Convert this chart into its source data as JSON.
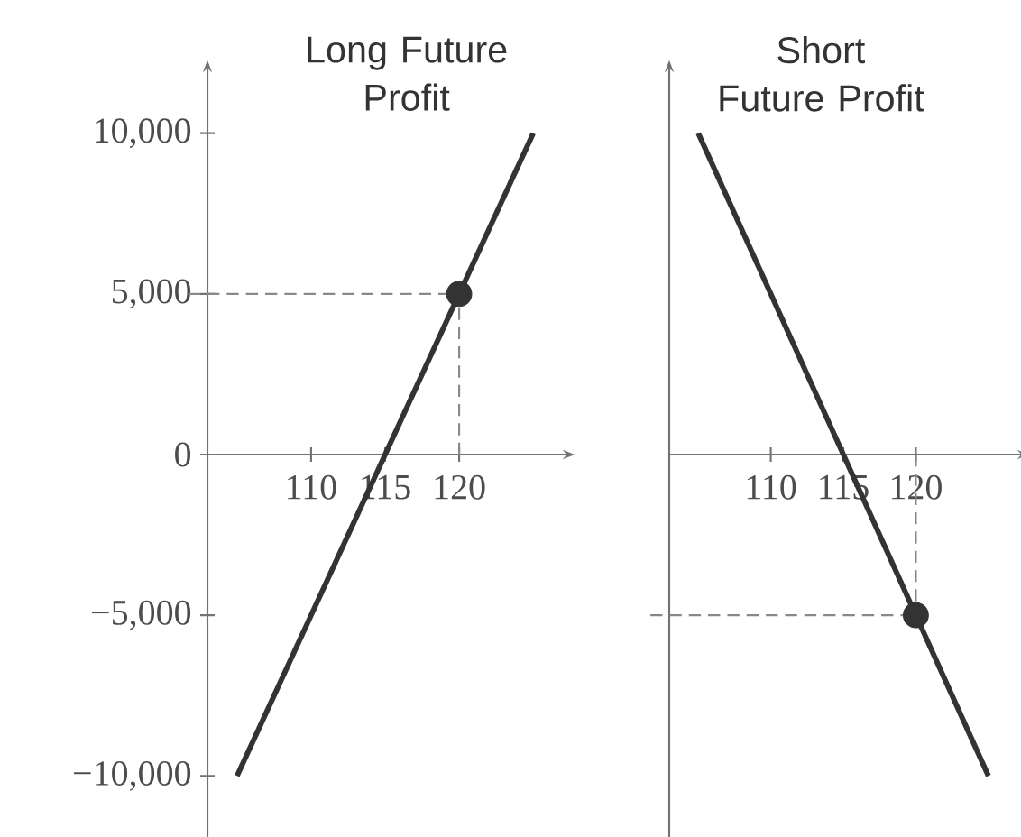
{
  "chart_data": [
    {
      "type": "line",
      "title": "Long Future Profit",
      "xlim": [
        103,
        127
      ],
      "ylim": [
        -11900,
        11900
      ],
      "xticks": [
        110,
        115,
        120
      ],
      "yticks": [
        {
          "value": -10000,
          "label": "−10,000"
        },
        {
          "value": -5000,
          "label": "−5,000"
        },
        {
          "value": 0,
          "label": "0"
        },
        {
          "value": 5000,
          "label": "5,000"
        },
        {
          "value": 10000,
          "label": "10,000"
        }
      ],
      "grid": false,
      "series": [
        {
          "color": "#333333",
          "x": [
            105,
            125
          ],
          "values": [
            -10000,
            10000
          ]
        },
        {
          "type": "scatter",
          "x": [
            120
          ],
          "values": [
            5000
          ],
          "color": "#333333"
        }
      ],
      "ref_lines": [
        {
          "axis": "x",
          "value": 120,
          "color": "#888888",
          "line_style": "dashed"
        },
        {
          "axis": "y",
          "value": 5000,
          "color": "#888888",
          "line_style": "dashed"
        }
      ]
    },
    {
      "type": "line",
      "title": "Short Future Profit",
      "xlim": [
        103,
        127
      ],
      "ylim": [
        -11900,
        11900
      ],
      "xticks": [
        110,
        115,
        120
      ],
      "tick_labels": "x",
      "grid": false,
      "series": [
        {
          "color": "#333333",
          "x": [
            105,
            125
          ],
          "values": [
            10000,
            -10000
          ]
        },
        {
          "type": "scatter",
          "x": [
            120
          ],
          "values": [
            -5000
          ],
          "color": "#333333"
        }
      ],
      "ref_lines": [
        {
          "axis": "x",
          "value": 120,
          "color": "#888888",
          "line_style": "dashed"
        },
        {
          "axis": "y",
          "value": -5000,
          "color": "#888888",
          "line_style": "dashed"
        }
      ]
    }
  ]
}
